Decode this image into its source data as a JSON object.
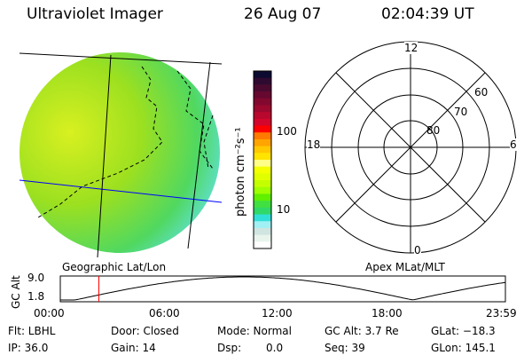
{
  "header": {
    "title": "Ultraviolet Imager",
    "date": "26 Aug 07",
    "time": "02:04:39 UT"
  },
  "colorbar": {
    "unit_label": "photon cm⁻²s⁻¹",
    "ticks": [
      "100",
      "10"
    ],
    "colors": [
      "#0c0a30",
      "#2e0a30",
      "#4a0a30",
      "#66082f",
      "#82082f",
      "#9c082e",
      "#b8082e",
      "#d4062c",
      "#ff0000",
      "#ff7a00",
      "#ffa400",
      "#ffc800",
      "#ffe400",
      "#ffff88",
      "#f4ff00",
      "#e2ff00",
      "#c4ff00",
      "#a0ff00",
      "#60f000",
      "#40e040",
      "#30d868",
      "#30e0d8",
      "#a0f0f4",
      "#d0e4e0",
      "#e8f4ec",
      "#ffffff"
    ]
  },
  "polar": {
    "labels": {
      "top": "12",
      "left": "18",
      "right": "6",
      "bottom": "0"
    },
    "rings": [
      "80",
      "70",
      "60"
    ]
  },
  "captions": {
    "left": "Geographic Lat/Lon",
    "right": "Apex MLat/MLT"
  },
  "timeline": {
    "ylabel": "GC Alt",
    "ymax": "9.0",
    "ymin": "1.8",
    "xticks": [
      "00:00",
      "06:00",
      "12:00",
      "18:00",
      "23:59"
    ],
    "marker_hour": 2.08,
    "marker_color": "#ff0000"
  },
  "status": {
    "flt": "Flt: LBHL",
    "ip": "IP: 36.0",
    "door": "Door: Closed",
    "gain": "Gain: 14",
    "mode": "Mode: Normal",
    "dsp_label": "Dsp:",
    "dsp_value": "0.0",
    "gcalt": "GC Alt: 3.7 Re",
    "seq": "Seq: 39",
    "glat": "GLat: −18.3",
    "glon": "GLon: 145.1"
  }
}
